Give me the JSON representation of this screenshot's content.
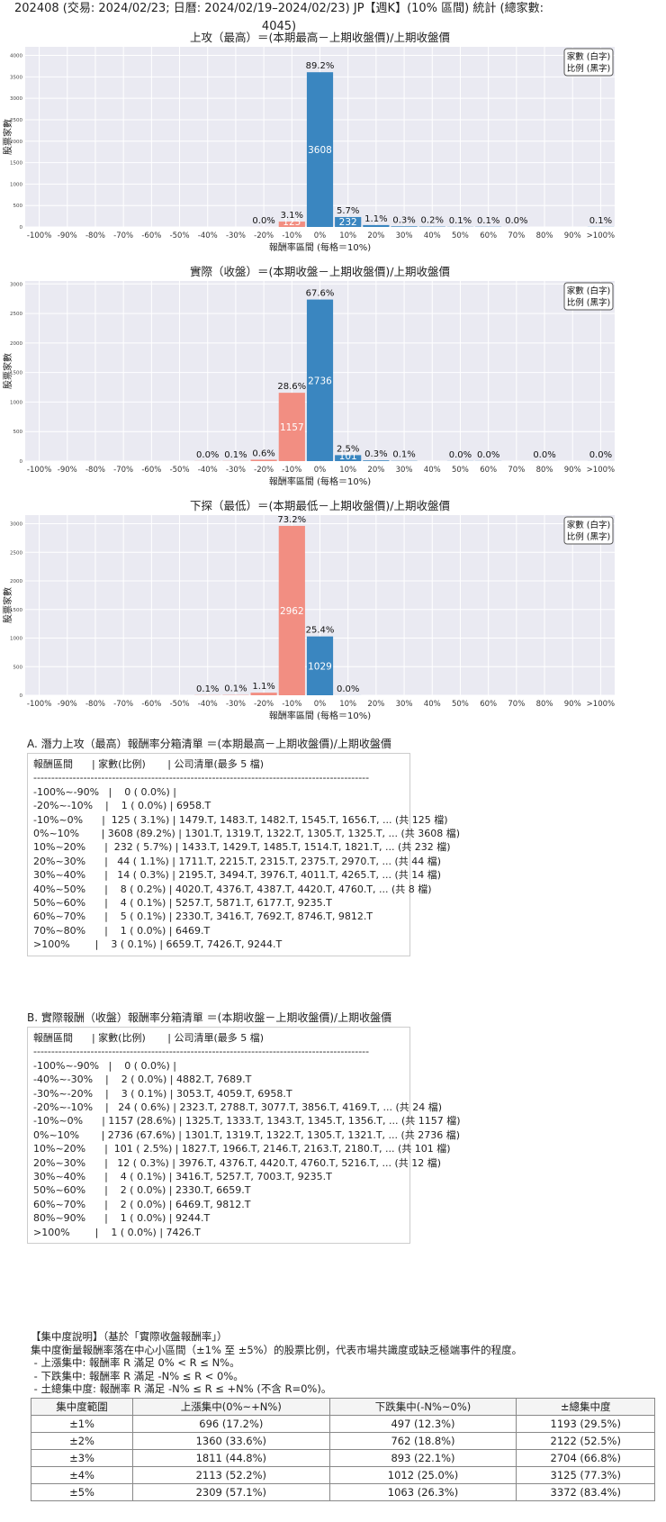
{
  "page_title": "202408 (交易: 2024/02/23; 日曆: 2024/02/19–2024/02/23) JP【週K】(10% 區間) 統計 (總家數: 4045)",
  "legend_box": [
    "家數 (白字)",
    "比例 (黑字)"
  ],
  "chart_data": [
    {
      "type": "bar",
      "title": "上攻（最高）＝(本期最高－上期收盤價)/上期收盤價",
      "xlabel": "報酬率區間 (每格＝10%)",
      "ylabel": "股票家數",
      "categories": [
        "-100%",
        "-90%",
        "-80%",
        "-70%",
        "-60%",
        "-50%",
        "-40%",
        "-30%",
        "-20%",
        "-10%",
        "0%",
        "10%",
        "20%",
        "30%",
        "40%",
        "50%",
        "60%",
        "70%",
        "80%",
        "90%",
        ">100%"
      ],
      "values": [
        0,
        0,
        0,
        0,
        0,
        0,
        0,
        0,
        1,
        125,
        3608,
        232,
        44,
        14,
        8,
        4,
        5,
        1,
        0,
        0,
        3
      ],
      "pct_labels": [
        "",
        "",
        "",
        "",
        "",
        "",
        "",
        "",
        "0.0%",
        "3.1%",
        "89.2%",
        "5.7%",
        "1.1%",
        "0.3%",
        "0.2%",
        "0.1%",
        "0.1%",
        "0.0%",
        "",
        "",
        "0.1%"
      ],
      "count_labels": [
        "",
        "",
        "",
        "",
        "",
        "",
        "",
        "",
        "",
        "125",
        "3608",
        "232",
        "",
        "",
        "",
        "",
        "",
        "",
        "",
        "",
        ""
      ],
      "ylim": [
        0,
        4200
      ],
      "yticks": [
        0,
        500,
        1000,
        1500,
        2000,
        2500,
        3000,
        3500,
        4000
      ],
      "colors": {
        "negative": "#f28e82",
        "positive": "#3a86c0"
      },
      "grid": true,
      "legend_position": "top-right"
    },
    {
      "type": "bar",
      "title": "實際（收盤）＝(本期收盤－上期收盤價)/上期收盤價",
      "xlabel": "報酬率區間 (每格＝10%)",
      "ylabel": "股票家數",
      "categories": [
        "-100%",
        "-90%",
        "-80%",
        "-70%",
        "-60%",
        "-50%",
        "-40%",
        "-30%",
        "-20%",
        "-10%",
        "0%",
        "10%",
        "20%",
        "30%",
        "40%",
        "50%",
        "60%",
        "70%",
        "80%",
        "90%",
        ">100%"
      ],
      "values": [
        0,
        0,
        0,
        0,
        0,
        0,
        2,
        3,
        24,
        1157,
        2736,
        101,
        12,
        4,
        0,
        2,
        2,
        0,
        1,
        0,
        1
      ],
      "pct_labels": [
        "",
        "",
        "",
        "",
        "",
        "",
        "0.0%",
        "0.1%",
        "0.6%",
        "28.6%",
        "67.6%",
        "2.5%",
        "0.3%",
        "0.1%",
        "",
        "0.0%",
        "0.0%",
        "",
        "0.0%",
        "",
        "0.0%"
      ],
      "count_labels": [
        "",
        "",
        "",
        "",
        "",
        "",
        "",
        "",
        "",
        "1157",
        "2736",
        "101",
        "",
        "",
        "",
        "",
        "",
        "",
        "",
        "",
        ""
      ],
      "ylim": [
        0,
        3050
      ],
      "yticks": [
        0,
        500,
        1000,
        1500,
        2000,
        2500,
        3000
      ],
      "colors": {
        "negative": "#f28e82",
        "positive": "#3a86c0"
      },
      "grid": true,
      "legend_position": "top-right"
    },
    {
      "type": "bar",
      "title": "下探（最低）＝(本期最低－上期收盤價)/上期收盤價",
      "xlabel": "報酬率區間 (每格＝10%)",
      "ylabel": "股票家數",
      "categories": [
        "-100%",
        "-90%",
        "-80%",
        "-70%",
        "-60%",
        "-50%",
        "-40%",
        "-30%",
        "-20%",
        "-10%",
        "0%",
        "10%",
        "20%",
        "30%",
        "40%",
        "50%",
        "60%",
        "70%",
        "80%",
        "90%",
        ">100%"
      ],
      "values": [
        0,
        0,
        0,
        0,
        0,
        0,
        3,
        5,
        45,
        2962,
        1029,
        1,
        0,
        0,
        0,
        0,
        0,
        0,
        0,
        0,
        0
      ],
      "pct_labels": [
        "",
        "",
        "",
        "",
        "",
        "",
        "0.1%",
        "0.1%",
        "1.1%",
        "73.2%",
        "25.4%",
        "0.0%",
        "",
        "",
        "",
        "",
        "",
        "",
        "",
        "",
        ""
      ],
      "count_labels": [
        "",
        "",
        "",
        "",
        "",
        "",
        "",
        "",
        "",
        "2962",
        "1029",
        "",
        "",
        "",
        "",
        "",
        "",
        "",
        "",
        "",
        ""
      ],
      "ylim": [
        0,
        3150
      ],
      "yticks": [
        0,
        500,
        1000,
        1500,
        2000,
        2500,
        3000
      ],
      "colors": {
        "negative": "#f28e82",
        "positive": "#3a86c0"
      },
      "grid": true,
      "legend_position": "top-right"
    }
  ],
  "list_a": {
    "title": "A. 潛力上攻（最高）報酬率分箱清單 ＝(本期最高－上期收盤價)/上期收盤價",
    "lines": [
      "報酬區間      | 家數(比例)       | 公司清單(最多 5 檔)",
      "----------------------------------------------------------------------------------------------",
      "-100%~-90%   |    0 ( 0.0%) |",
      "-20%~-10%    |    1 ( 0.0%) | 6958.T",
      "-10%~0%      |  125 ( 3.1%) | 1479.T, 1483.T, 1482.T, 1545.T, 1656.T, ... (共 125 檔)",
      "0%~10%       | 3608 (89.2%) | 1301.T, 1319.T, 1322.T, 1305.T, 1325.T, ... (共 3608 檔)",
      "10%~20%      |  232 ( 5.7%) | 1433.T, 1429.T, 1485.T, 1514.T, 1821.T, ... (共 232 檔)",
      "20%~30%      |   44 ( 1.1%) | 1711.T, 2215.T, 2315.T, 2375.T, 2970.T, ... (共 44 檔)",
      "30%~40%      |   14 ( 0.3%) | 2195.T, 3494.T, 3976.T, 4011.T, 4265.T, ... (共 14 檔)",
      "40%~50%      |    8 ( 0.2%) | 4020.T, 4376.T, 4387.T, 4420.T, 4760.T, ... (共 8 檔)",
      "50%~60%      |    4 ( 0.1%) | 5257.T, 5871.T, 6177.T, 9235.T",
      "60%~70%      |    5 ( 0.1%) | 2330.T, 3416.T, 7692.T, 8746.T, 9812.T",
      "70%~80%      |    1 ( 0.0%) | 6469.T",
      ">100%        |    3 ( 0.1%) | 6659.T, 7426.T, 9244.T"
    ]
  },
  "list_b": {
    "title": "B. 實際報酬（收盤）報酬率分箱清單 ＝(本期收盤－上期收盤價)/上期收盤價",
    "lines": [
      "報酬區間      | 家數(比例)       | 公司清單(最多 5 檔)",
      "----------------------------------------------------------------------------------------------",
      "-100%~-90%   |    0 ( 0.0%) |",
      "-40%~-30%    |    2 ( 0.0%) | 4882.T, 7689.T",
      "-30%~-20%    |    3 ( 0.1%) | 3053.T, 4059.T, 6958.T",
      "-20%~-10%    |   24 ( 0.6%) | 2323.T, 2788.T, 3077.T, 3856.T, 4169.T, ... (共 24 檔)",
      "-10%~0%      | 1157 (28.6%) | 1325.T, 1333.T, 1343.T, 1345.T, 1356.T, ... (共 1157 檔)",
      "0%~10%       | 2736 (67.6%) | 1301.T, 1319.T, 1322.T, 1305.T, 1321.T, ... (共 2736 檔)",
      "10%~20%      |  101 ( 2.5%) | 1827.T, 1966.T, 2146.T, 2163.T, 2180.T, ... (共 101 檔)",
      "20%~30%      |   12 ( 0.3%) | 3976.T, 4376.T, 4420.T, 4760.T, 5216.T, ... (共 12 檔)",
      "30%~40%      |    4 ( 0.1%) | 3416.T, 5257.T, 7003.T, 9235.T",
      "50%~60%      |    2 ( 0.0%) | 2330.T, 6659.T",
      "60%~70%      |    2 ( 0.0%) | 6469.T, 9812.T",
      "80%~90%      |    1 ( 0.0%) | 9244.T",
      ">100%        |    1 ( 0.0%) | 7426.T"
    ]
  },
  "notes": [
    "【集中度說明】（基於「實際收盤報酬率」）",
    "集中度衡量報酬率落在中心小區間（±1% 至 ±5%）的股票比例，代表市場共識度或缺乏極端事件的程度。",
    " - 上漲集中: 報酬率 R 滿足 0% < R ≤ N%。",
    " - 下跌集中: 報酬率 R 滿足 -N% ≤ R < 0%。",
    " - 土總集中度: 報酬率 R 滿足 -N% ≤ R ≤ +N% (不含 R=0%)。"
  ],
  "concentration_table": {
    "headers": [
      "集中度範圍",
      "上漲集中(0%~+N%)",
      "下跌集中(-N%~0%)",
      "±總集中度"
    ],
    "rows": [
      [
        "±1%",
        "696 (17.2%)",
        "497 (12.3%)",
        "1193 (29.5%)"
      ],
      [
        "±2%",
        "1360 (33.6%)",
        "762 (18.8%)",
        "2122 (52.5%)"
      ],
      [
        "±3%",
        "1811 (44.8%)",
        "893 (22.1%)",
        "2704 (66.8%)"
      ],
      [
        "±4%",
        "2113 (52.2%)",
        "1012 (25.0%)",
        "3125 (77.3%)"
      ],
      [
        "±5%",
        "2309 (57.1%)",
        "1063 (26.3%)",
        "3372 (83.4%)"
      ]
    ]
  }
}
